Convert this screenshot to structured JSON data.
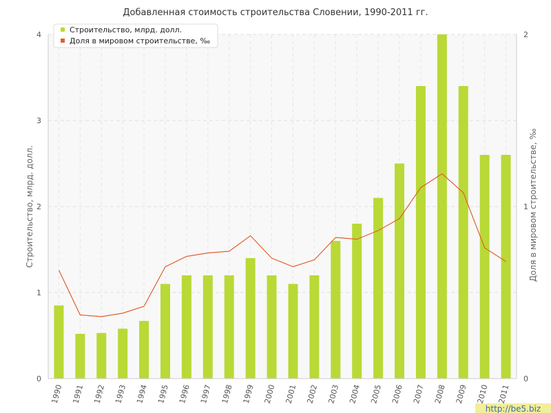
{
  "chart_data": {
    "type": "bar",
    "title": "Добавленная стоимость строительства Словении, 1990-2011 гг.",
    "categories": [
      "1990",
      "1991",
      "1992",
      "1993",
      "1994",
      "1995",
      "1996",
      "1997",
      "1998",
      "1999",
      "2000",
      "2001",
      "2002",
      "2003",
      "2004",
      "2005",
      "2006",
      "2007",
      "2008",
      "2009",
      "2010",
      "2011"
    ],
    "series": [
      {
        "name": "Строительство, млрд. долл.",
        "axis": "left",
        "render": "bar",
        "color": "#b9d936",
        "values": [
          0.85,
          0.52,
          0.53,
          0.58,
          0.67,
          1.1,
          1.2,
          1.2,
          1.2,
          1.4,
          1.2,
          1.1,
          1.2,
          1.6,
          1.8,
          2.1,
          2.5,
          3.4,
          4.0,
          3.4,
          2.6,
          2.6
        ]
      },
      {
        "name": "Доля в мировом строительстве, ‰",
        "axis": "right",
        "render": "line",
        "color": "#e06030",
        "values": [
          0.63,
          0.37,
          0.36,
          0.38,
          0.42,
          0.65,
          0.71,
          0.73,
          0.74,
          0.83,
          0.7,
          0.65,
          0.69,
          0.82,
          0.81,
          0.86,
          0.93,
          1.11,
          1.19,
          1.08,
          0.76,
          0.68
        ]
      }
    ],
    "ylabel": "Строительство, млрд. долл.",
    "ylabel_right": "Доля в мировом строительстве, ‰",
    "ylim": [
      0,
      4
    ],
    "ylim_right": [
      0,
      2
    ],
    "yticks": [
      "0",
      "1",
      "2",
      "3",
      "4"
    ],
    "yticks_right": [
      "0",
      "1",
      "2"
    ],
    "grid": true,
    "legend_position": "top-left"
  },
  "watermark": "http://be5.biz"
}
